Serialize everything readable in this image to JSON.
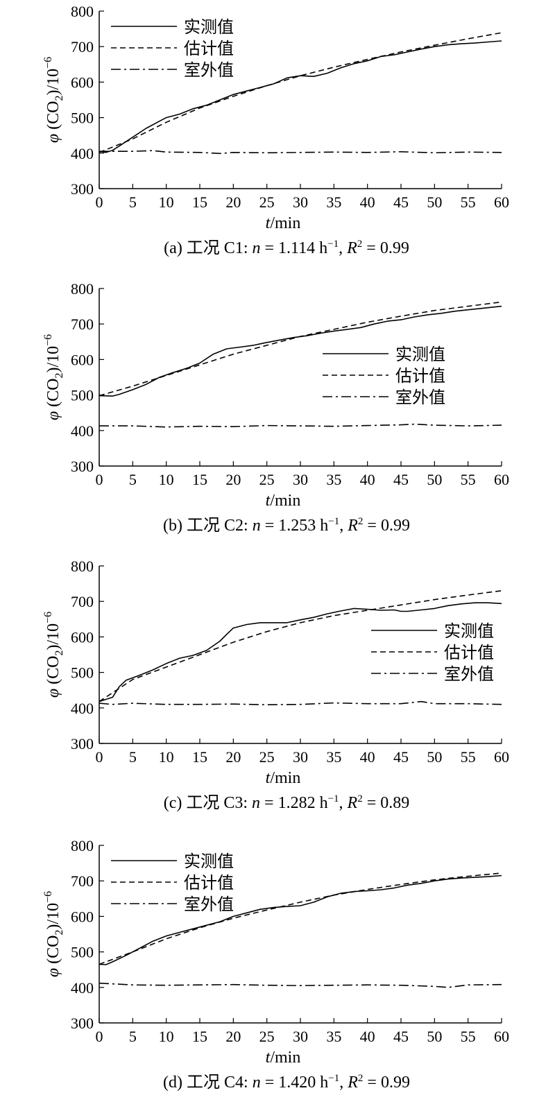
{
  "charts": [
    {
      "chart_data": {
        "type": "line",
        "xlabel_sym": "t",
        "xlabel_unit": "/min",
        "ylabel": "φ (CO2)/10−6",
        "xlim": [
          0,
          60
        ],
        "ylim": [
          300,
          800
        ],
        "xticks": [
          0,
          5,
          10,
          15,
          20,
          25,
          30,
          35,
          40,
          45,
          50,
          55,
          60
        ],
        "yticks": [
          300,
          400,
          500,
          600,
          700,
          800
        ],
        "legend_position": "top-left",
        "series": [
          {
            "name": "实测值",
            "style": "solid",
            "x": [
              0,
              1,
              2,
              3,
              5,
              7,
              9,
              10,
              12,
              14,
              16,
              18,
              20,
              22,
              24,
              26,
              28,
              30,
              32,
              34,
              36,
              38,
              40,
              42,
              44,
              46,
              48,
              50,
              52,
              54,
              56,
              58,
              60
            ],
            "y": [
              405,
              402,
              408,
              420,
              445,
              470,
              490,
              500,
              510,
              525,
              535,
              550,
              565,
              575,
              585,
              595,
              612,
              618,
              616,
              625,
              640,
              652,
              660,
              672,
              677,
              685,
              693,
              700,
              705,
              708,
              710,
              713,
              716
            ]
          },
          {
            "name": "估计值",
            "style": "dashed",
            "x": [
              0,
              5,
              10,
              15,
              20,
              25,
              30,
              35,
              40,
              45,
              50,
              55,
              60
            ],
            "y": [
              402,
              440,
              487,
              527,
              560,
              590,
              618,
              642,
              664,
              685,
              704,
              722,
              739
            ]
          },
          {
            "name": "室外值",
            "style": "dashdot",
            "x": [
              0,
              5,
              8,
              10,
              15,
              18,
              20,
              25,
              30,
              35,
              40,
              45,
              50,
              55,
              60
            ],
            "y": [
              405,
              405,
              407,
              403,
              402,
              399,
              402,
              401,
              402,
              403,
              402,
              404,
              401,
              403,
              402
            ]
          }
        ]
      },
      "caption": {
        "prefix": "(a) 工况 C1: ",
        "n_sym": "n",
        "n_val": " = 1.114 h",
        "n_exp": "−1",
        "sep": ", ",
        "r_sym": "R",
        "r_exp": "2",
        "r_val": " = 0.99"
      }
    },
    {
      "chart_data": {
        "type": "line",
        "xlabel_sym": "t",
        "xlabel_unit": "/min",
        "ylabel": "φ (CO2)/10−6",
        "xlim": [
          0,
          60
        ],
        "ylim": [
          300,
          800
        ],
        "xticks": [
          0,
          5,
          10,
          15,
          20,
          25,
          30,
          35,
          40,
          45,
          50,
          55,
          60
        ],
        "yticks": [
          300,
          400,
          500,
          600,
          700,
          800
        ],
        "legend_position": "center-right",
        "series": [
          {
            "name": "实测值",
            "style": "solid",
            "x": [
              0,
              2,
              3,
              5,
              7,
              9,
              11,
              13,
              15,
              17,
              19,
              21,
              23,
              25,
              27,
              29,
              31,
              33,
              35,
              37,
              39,
              41,
              43,
              45,
              47,
              49,
              51,
              53,
              55,
              57,
              60
            ],
            "y": [
              498,
              497,
              502,
              515,
              530,
              550,
              563,
              575,
              590,
              615,
              630,
              635,
              640,
              648,
              655,
              662,
              667,
              674,
              680,
              685,
              690,
              700,
              708,
              712,
              720,
              726,
              730,
              736,
              740,
              744,
              750
            ]
          },
          {
            "name": "估计值",
            "style": "dashed",
            "x": [
              0,
              5,
              10,
              15,
              20,
              25,
              30,
              35,
              40,
              45,
              50,
              55,
              60
            ],
            "y": [
              498,
              525,
              555,
              585,
              615,
              640,
              665,
              685,
              705,
              722,
              738,
              750,
              762
            ]
          },
          {
            "name": "室外值",
            "style": "dashdot",
            "x": [
              0,
              5,
              10,
              15,
              20,
              25,
              30,
              35,
              40,
              45,
              47,
              50,
              55,
              60
            ],
            "y": [
              413,
              413,
              410,
              412,
              411,
              414,
              413,
              412,
              414,
              416,
              418,
              415,
              413,
              415
            ]
          }
        ]
      },
      "caption": {
        "prefix": "(b) 工况 C2: ",
        "n_sym": "n",
        "n_val": " = 1.253 h",
        "n_exp": "−1",
        "sep": ", ",
        "r_sym": "R",
        "r_exp": "2",
        "r_val": " = 0.99"
      }
    },
    {
      "chart_data": {
        "type": "line",
        "xlabel_sym": "t",
        "xlabel_unit": "/min",
        "ylabel": "φ (CO2)/10−6",
        "xlim": [
          0,
          60
        ],
        "ylim": [
          300,
          800
        ],
        "xticks": [
          0,
          5,
          10,
          15,
          20,
          25,
          30,
          35,
          40,
          45,
          50,
          55,
          60
        ],
        "yticks": [
          300,
          400,
          500,
          600,
          700,
          800
        ],
        "legend_position": "center-right",
        "series": [
          {
            "name": "实测值",
            "style": "solid",
            "x": [
              0,
              1,
              2,
              3,
              4,
              6,
              8,
              10,
              12,
              14,
              16,
              18,
              19,
              20,
              22,
              24,
              26,
              28,
              30,
              32,
              34,
              36,
              38,
              40,
              42,
              44,
              45,
              46,
              48,
              50,
              52,
              54,
              56,
              58,
              60
            ],
            "y": [
              418,
              424,
              430,
              460,
              478,
              492,
              507,
              525,
              540,
              548,
              562,
              588,
              607,
              625,
              635,
              640,
              640,
              640,
              648,
              655,
              665,
              673,
              680,
              678,
              675,
              676,
              672,
              672,
              676,
              680,
              688,
              693,
              696,
              696,
              694
            ]
          },
          {
            "name": "估计值",
            "style": "dashed",
            "x": [
              0,
              5,
              10,
              15,
              20,
              25,
              30,
              35,
              40,
              45,
              50,
              55,
              60
            ],
            "y": [
              418,
              480,
              515,
              550,
              585,
              615,
              640,
              660,
              675,
              690,
              705,
              718,
              730
            ]
          },
          {
            "name": "室外值",
            "style": "dashdot",
            "x": [
              0,
              2,
              5,
              10,
              15,
              20,
              25,
              30,
              35,
              40,
              45,
              48,
              50,
              55,
              60
            ],
            "y": [
              413,
              410,
              413,
              410,
              410,
              411,
              409,
              410,
              414,
              412,
              412,
              418,
              412,
              412,
              410
            ]
          }
        ]
      },
      "caption": {
        "prefix": "(c) 工况 C3: ",
        "n_sym": "n",
        "n_val": " = 1.282 h",
        "n_exp": "−1",
        "sep": ", ",
        "r_sym": "R",
        "r_exp": "2",
        "r_val": " = 0.89"
      }
    },
    {
      "chart_data": {
        "type": "line",
        "xlabel_sym": "t",
        "xlabel_unit": "/min",
        "ylabel": "φ (CO2)/10−6",
        "xlim": [
          0,
          60
        ],
        "ylim": [
          300,
          800
        ],
        "xticks": [
          0,
          5,
          10,
          15,
          20,
          25,
          30,
          35,
          40,
          45,
          50,
          55,
          60
        ],
        "yticks": [
          300,
          400,
          500,
          600,
          700,
          800
        ],
        "legend_position": "top-left",
        "series": [
          {
            "name": "实测值",
            "style": "solid",
            "x": [
              0,
              1,
              2,
              4,
              6,
              8,
              10,
              12,
              14,
              16,
              18,
              20,
              22,
              24,
              26,
              28,
              30,
              32,
              34,
              36,
              38,
              40,
              42,
              44,
              46,
              48,
              50,
              52,
              54,
              56,
              58,
              60
            ],
            "y": [
              465,
              464,
              472,
              490,
              510,
              530,
              545,
              555,
              565,
              575,
              585,
              600,
              610,
              620,
              625,
              628,
              630,
              640,
              655,
              665,
              670,
              672,
              675,
              680,
              688,
              693,
              700,
              705,
              708,
              710,
              712,
              715
            ]
          },
          {
            "name": "估计值",
            "style": "dashed",
            "x": [
              0,
              5,
              10,
              15,
              20,
              25,
              30,
              35,
              40,
              45,
              50,
              55,
              60
            ],
            "y": [
              465,
              500,
              537,
              568,
              595,
              618,
              640,
              660,
              676,
              690,
              703,
              713,
              722
            ]
          },
          {
            "name": "室外值",
            "style": "dashdot",
            "x": [
              0,
              5,
              10,
              15,
              20,
              25,
              30,
              35,
              40,
              45,
              50,
              52,
              55,
              60
            ],
            "y": [
              412,
              407,
              406,
              407,
              408,
              406,
              405,
              406,
              407,
              406,
              403,
              400,
              407,
              408
            ]
          }
        ]
      },
      "caption": {
        "prefix": "(d) 工况 C4: ",
        "n_sym": "n",
        "n_val": " = 1.420 h",
        "n_exp": "−1",
        "sep": ", ",
        "r_sym": "R",
        "r_exp": "2",
        "r_val": " = 0.99"
      }
    }
  ]
}
